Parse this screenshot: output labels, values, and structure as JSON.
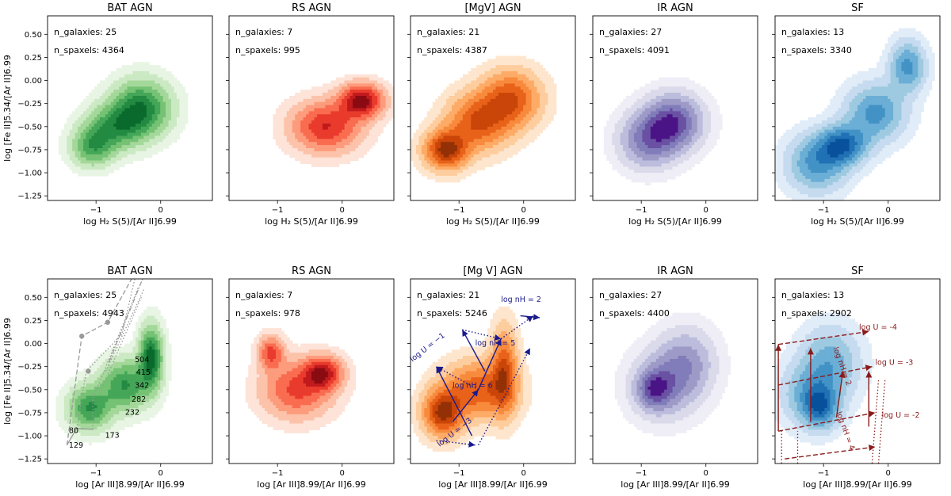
{
  "chart_data": [
    {
      "type": "kde-contour",
      "row": "top",
      "title": "BAT AGN",
      "colormap": "Greens",
      "ylabel": "log [Fe II]5.34/[Ar II]6.99",
      "xlabel": "log H₂ S(5)/[Ar II]6.99",
      "xlim": [
        -1.75,
        0.8
      ],
      "ylim": [
        -1.3,
        0.7
      ],
      "xticks": [
        "−1",
        "0"
      ],
      "yticks": [
        "0.50",
        "0.25",
        "0.00",
        "−0.25",
        "−0.50",
        "−0.75",
        "−1.00",
        "−1.25"
      ],
      "stats": [
        "n_galaxies: 25",
        "n_spaxels: 4364"
      ],
      "peaks": [
        {
          "x": -0.3,
          "y": -0.3,
          "sx": 0.3,
          "sy": 0.2
        },
        {
          "x": -1.05,
          "y": -0.72,
          "sx": 0.22,
          "sy": 0.14
        },
        {
          "x": -0.7,
          "y": -0.5,
          "sx": 0.3,
          "sy": 0.16
        }
      ],
      "annotations": []
    },
    {
      "type": "kde-contour",
      "row": "top",
      "title": "RS AGN",
      "colormap": "Reds",
      "xlabel": "log H₂ S(5)/[Ar II]6.99",
      "xlim": [
        -1.75,
        0.8
      ],
      "ylim": [
        -1.3,
        0.7
      ],
      "xticks": [
        "−1",
        "0"
      ],
      "stats": [
        "n_galaxies: 7",
        "n_spaxels: 995"
      ],
      "peaks": [
        {
          "x": 0.3,
          "y": -0.22,
          "sx": 0.22,
          "sy": 0.12
        },
        {
          "x": -0.25,
          "y": -0.5,
          "sx": 0.35,
          "sy": 0.18
        }
      ],
      "annotations": []
    },
    {
      "type": "kde-contour",
      "row": "top",
      "title": "[MgV] AGN",
      "colormap": "Oranges",
      "xlabel": "log H₂ S(5)/[Ar II]6.99",
      "xlim": [
        -1.75,
        0.8
      ],
      "ylim": [
        -1.3,
        0.7
      ],
      "xticks": [
        "−1",
        "0"
      ],
      "stats": [
        "n_galaxies: 21",
        "n_spaxels: 4387"
      ],
      "peaks": [
        {
          "x": -1.2,
          "y": -0.75,
          "sx": 0.22,
          "sy": 0.14
        },
        {
          "x": -0.7,
          "y": -0.45,
          "sx": 0.32,
          "sy": 0.2
        },
        {
          "x": -0.2,
          "y": -0.2,
          "sx": 0.3,
          "sy": 0.2
        }
      ],
      "annotations": []
    },
    {
      "type": "kde-contour",
      "row": "top",
      "title": "IR AGN",
      "colormap": "Purples",
      "xlabel": "log H₂ S(5)/[Ar II]6.99",
      "xlim": [
        -1.75,
        0.8
      ],
      "ylim": [
        -1.3,
        0.7
      ],
      "xticks": [
        "−1",
        "0"
      ],
      "stats": [
        "n_galaxies: 27",
        "n_spaxels: 4091"
      ],
      "peaks": [
        {
          "x": -0.5,
          "y": -0.45,
          "sx": 0.3,
          "sy": 0.2
        },
        {
          "x": -0.9,
          "y": -0.65,
          "sx": 0.3,
          "sy": 0.2
        }
      ],
      "annotations": []
    },
    {
      "type": "kde-contour",
      "row": "top",
      "title": "SF",
      "colormap": "Blues",
      "xlabel": "log H₂ S(5)/[Ar II]6.99",
      "xlim": [
        -1.75,
        0.8
      ],
      "ylim": [
        -1.3,
        0.7
      ],
      "xticks": [
        "−1",
        "0"
      ],
      "stats": [
        "n_galaxies: 13",
        "n_spaxels: 3340"
      ],
      "peaks": [
        {
          "x": -0.7,
          "y": -0.7,
          "sx": 0.25,
          "sy": 0.14
        },
        {
          "x": -1.1,
          "y": -0.9,
          "sx": 0.3,
          "sy": 0.2
        },
        {
          "x": -0.2,
          "y": -0.35,
          "sx": 0.3,
          "sy": 0.2
        },
        {
          "x": 0.3,
          "y": 0.15,
          "sx": 0.18,
          "sy": 0.18
        }
      ],
      "annotations": []
    },
    {
      "type": "kde-contour",
      "row": "bottom",
      "title": "BAT AGN",
      "colormap": "Greens",
      "ylabel": "log [Fe II]5.34/[Ar II]6.99",
      "xlabel": "log [Ar III]8.99/[Ar II]6.99",
      "xlim": [
        -1.75,
        0.8
      ],
      "ylim": [
        -1.3,
        0.7
      ],
      "xticks": [
        "−1",
        "0"
      ],
      "yticks": [
        "0.50",
        "0.25",
        "0.00",
        "−0.25",
        "−0.50",
        "−0.75",
        "−1.00",
        "−1.25"
      ],
      "stats": [
        "n_galaxies: 25",
        "n_spaxels: 4943"
      ],
      "peaks": [
        {
          "x": -0.15,
          "y": -0.15,
          "sx": 0.12,
          "sy": 0.22
        },
        {
          "x": -1.1,
          "y": -0.7,
          "sx": 0.22,
          "sy": 0.16
        },
        {
          "x": -0.55,
          "y": -0.45,
          "sx": 0.25,
          "sy": 0.18
        }
      ],
      "annotations": [
        {
          "style": "solid",
          "color": "#999999",
          "width": 1.3,
          "points": [
            [
              -1.45,
              -1.1
            ],
            [
              -1.3,
              -0.92
            ],
            [
              -1.05,
              -0.93
            ]
          ]
        },
        {
          "style": "dashed",
          "color": "#999999",
          "width": 1.3,
          "points": [
            [
              -1.45,
              -1.1
            ],
            [
              -1.22,
              0.08
            ],
            [
              -0.82,
              0.23
            ],
            [
              -0.45,
              0.7
            ]
          ]
        },
        {
          "style": "dotted",
          "color": "#999999",
          "width": 1.3,
          "points": [
            [
              -1.3,
              -0.92
            ],
            [
              -1.15,
              -0.3
            ],
            [
              -0.6,
              0.1
            ],
            [
              -0.4,
              0.7
            ]
          ]
        },
        {
          "style": "dotted",
          "color": "#999999",
          "width": 1.3,
          "points": [
            [
              -1.05,
              -0.93
            ],
            [
              -1.05,
              -0.6
            ],
            [
              -0.35,
              0.6
            ]
          ]
        },
        {
          "style": "dotted",
          "color": "#999999",
          "width": 1.3,
          "points": [
            [
              -0.95,
              -0.55
            ],
            [
              -0.3,
              0.5
            ]
          ]
        },
        {
          "style": "dotted",
          "color": "#999999",
          "width": 1.3,
          "points": [
            [
              -0.85,
              -0.3
            ],
            [
              -0.25,
              0.6
            ]
          ]
        },
        {
          "style": "dashdot",
          "color": "#999999",
          "width": 1.3,
          "points": [
            [
              -0.8,
              -0.2
            ],
            [
              -0.28,
              0.7
            ]
          ]
        }
      ],
      "markers": [
        [
          -1.22,
          0.08
        ],
        [
          -1.12,
          -0.3
        ],
        [
          -0.82,
          0.23
        ]
      ],
      "labels": [
        {
          "x": -1.42,
          "y": -0.97,
          "text": "80"
        },
        {
          "x": -1.42,
          "y": -1.13,
          "text": "129"
        },
        {
          "x": -0.86,
          "y": -1.02,
          "text": "173"
        },
        {
          "x": -0.55,
          "y": -0.77,
          "text": "232"
        },
        {
          "x": -0.45,
          "y": -0.63,
          "text": "282"
        },
        {
          "x": -0.4,
          "y": -0.48,
          "text": "342"
        },
        {
          "x": -0.38,
          "y": -0.34,
          "text": "415"
        },
        {
          "x": -0.4,
          "y": -0.2,
          "text": "504"
        }
      ]
    },
    {
      "type": "kde-contour",
      "row": "bottom",
      "title": "RS AGN",
      "colormap": "Reds",
      "xlabel": "log [Ar III]8.99/[Ar II]6.99",
      "xlim": [
        -1.75,
        0.8
      ],
      "ylim": [
        -1.3,
        0.7
      ],
      "xticks": [
        "−1",
        "0"
      ],
      "stats": [
        "n_galaxies: 7",
        "n_spaxels: 978"
      ],
      "peaks": [
        {
          "x": -0.3,
          "y": -0.32,
          "sx": 0.2,
          "sy": 0.12
        },
        {
          "x": -1.1,
          "y": -0.1,
          "sx": 0.13,
          "sy": 0.12
        },
        {
          "x": -0.7,
          "y": -0.5,
          "sx": 0.35,
          "sy": 0.2
        }
      ],
      "annotations": []
    },
    {
      "type": "kde-contour",
      "row": "bottom",
      "title": "[Mg V] AGN",
      "colormap": "Oranges",
      "xlabel": "log [Ar III]8.99/[Ar II]6.99",
      "xlim": [
        -1.75,
        0.8
      ],
      "ylim": [
        -1.3,
        0.7
      ],
      "xticks": [
        "−1",
        "0"
      ],
      "stats": [
        "n_galaxies: 21",
        "n_spaxels: 5246"
      ],
      "peaks": [
        {
          "x": -1.25,
          "y": -0.75,
          "sx": 0.2,
          "sy": 0.17
        },
        {
          "x": -0.3,
          "y": -0.3,
          "sx": 0.13,
          "sy": 0.3
        },
        {
          "x": -0.7,
          "y": -0.5,
          "sx": 0.35,
          "sy": 0.2
        }
      ],
      "annotations": [
        {
          "style": "solid",
          "color": "#1a1a8c",
          "width": 1.4,
          "arrow": true,
          "points": [
            [
              -0.8,
              -1.0
            ],
            [
              -1.35,
              -0.25
            ]
          ]
        },
        {
          "style": "solid",
          "color": "#1a1a8c",
          "width": 1.4,
          "arrow": true,
          "points": [
            [
              -1.1,
              -0.85
            ],
            [
              -0.7,
              -0.5
            ]
          ]
        },
        {
          "style": "solid",
          "color": "#1a1a8c",
          "width": 1.4,
          "arrow": true,
          "points": [
            [
              -0.7,
              -0.5
            ],
            [
              -0.35,
              0.05
            ]
          ]
        },
        {
          "style": "solid",
          "color": "#1a1a8c",
          "width": 1.4,
          "arrow": true,
          "points": [
            [
              -0.6,
              -0.3
            ],
            [
              -0.95,
              0.15
            ]
          ]
        },
        {
          "style": "solid",
          "color": "#1a1a8c",
          "width": 1.4,
          "arrow": true,
          "points": [
            [
              -0.05,
              0.3
            ],
            [
              0.25,
              0.28
            ]
          ]
        },
        {
          "style": "dotted",
          "color": "#1a1a8c",
          "width": 1.4,
          "arrow": true,
          "points": [
            [
              -0.7,
              -0.5
            ],
            [
              -1.35,
              -0.25
            ]
          ]
        },
        {
          "style": "dotted",
          "color": "#1a1a8c",
          "width": 1.4,
          "arrow": true,
          "points": [
            [
              -1.35,
              -1.05
            ],
            [
              -0.75,
              -1.1
            ]
          ]
        },
        {
          "style": "dotted",
          "color": "#1a1a8c",
          "width": 1.4,
          "arrow": true,
          "points": [
            [
              -0.7,
              -1.1
            ],
            [
              0.1,
              -0.05
            ]
          ]
        },
        {
          "style": "dotted",
          "color": "#1a1a8c",
          "width": 1.4,
          "arrow": true,
          "points": [
            [
              -0.95,
              0.15
            ],
            [
              -0.35,
              0.05
            ]
          ]
        },
        {
          "style": "dotted",
          "color": "#1a1a8c",
          "width": 1.4,
          "arrow": true,
          "points": [
            [
              -0.35,
              0.05
            ],
            [
              0.15,
              0.3
            ]
          ]
        }
      ],
      "markers": [],
      "labels": [
        {
          "x": -1.72,
          "y": -0.2,
          "text": "log U = −1",
          "rot": -38,
          "color": "#1a1a8c"
        },
        {
          "x": -1.3,
          "y": -1.12,
          "text": "log U = −3",
          "rot": -38,
          "color": "#1a1a8c"
        },
        {
          "x": -0.35,
          "y": 0.45,
          "text": "log nH = 2",
          "color": "#1a1a8c"
        },
        {
          "x": -0.75,
          "y": -0.02,
          "text": "log nH = 5",
          "color": "#1a1a8c"
        },
        {
          "x": -1.1,
          "y": -0.48,
          "text": "log nH = 6",
          "color": "#1a1a8c"
        }
      ]
    },
    {
      "type": "kde-contour",
      "row": "bottom",
      "title": "IR AGN",
      "colormap": "Purples",
      "xlabel": "log [Ar III]8.99/[Ar II]6.99",
      "xlim": [
        -1.75,
        0.8
      ],
      "ylim": [
        -1.3,
        0.7
      ],
      "xticks": [
        "−1",
        "0"
      ],
      "stats": [
        "n_galaxies: 27",
        "n_spaxels: 4400"
      ],
      "peaks": [
        {
          "x": -0.8,
          "y": -0.5,
          "sx": 0.18,
          "sy": 0.14
        },
        {
          "x": -0.65,
          "y": -0.45,
          "sx": 0.35,
          "sy": 0.25
        },
        {
          "x": -0.3,
          "y": -0.2,
          "sx": 0.3,
          "sy": 0.25
        }
      ],
      "annotations": []
    },
    {
      "type": "kde-contour",
      "row": "bottom",
      "title": "SF",
      "colormap": "Blues",
      "xlabel": "log [Ar III]8.99/[Ar II]6.99",
      "xlim": [
        -1.75,
        0.8
      ],
      "ylim": [
        -1.3,
        0.7
      ],
      "xticks": [
        "−1",
        "0"
      ],
      "stats": [
        "n_galaxies: 13",
        "n_spaxels: 2902"
      ],
      "peaks": [
        {
          "x": -1.05,
          "y": -0.7,
          "sx": 0.18,
          "sy": 0.15
        },
        {
          "x": -1.2,
          "y": -0.55,
          "sx": 0.3,
          "sy": 0.22
        },
        {
          "x": -0.9,
          "y": -0.2,
          "sx": 0.3,
          "sy": 0.25
        }
      ],
      "annotations": [
        {
          "style": "dashed",
          "color": "#8b1a1a",
          "width": 1.4,
          "arrow": true,
          "points": [
            [
              -1.7,
              -0.01
            ],
            [
              -0.3,
              0.13
            ]
          ]
        },
        {
          "style": "dashed",
          "color": "#8b1a1a",
          "width": 1.4,
          "arrow": true,
          "points": [
            [
              -1.7,
              -0.45
            ],
            [
              -0.25,
              -0.25
            ]
          ]
        },
        {
          "style": "dashed",
          "color": "#8b1a1a",
          "width": 1.4,
          "arrow": true,
          "points": [
            [
              -1.7,
              -0.95
            ],
            [
              -0.2,
              -0.75
            ]
          ]
        },
        {
          "style": "dashed",
          "color": "#8b1a1a",
          "width": 1.4,
          "arrow": true,
          "points": [
            [
              -1.6,
              -1.25
            ],
            [
              -0.2,
              -1.12
            ]
          ]
        },
        {
          "style": "solid",
          "color": "#8b1a1a",
          "width": 1.4,
          "arrow": true,
          "points": [
            [
              -1.7,
              -0.95
            ],
            [
              -1.7,
              -0.01
            ]
          ]
        },
        {
          "style": "solid",
          "color": "#8b1a1a",
          "width": 1.4,
          "arrow": true,
          "points": [
            [
              -1.2,
              -0.85
            ],
            [
              -1.2,
              -0.05
            ]
          ]
        },
        {
          "style": "solid",
          "color": "#8b1a1a",
          "width": 1.4,
          "arrow": true,
          "points": [
            [
              -0.8,
              -0.8
            ],
            [
              -0.7,
              -0.3
            ]
          ]
        },
        {
          "style": "solid",
          "color": "#8b1a1a",
          "width": 1.4,
          "arrow": true,
          "points": [
            [
              -0.3,
              -0.9
            ],
            [
              -0.3,
              -0.3
            ]
          ]
        },
        {
          "style": "dotted",
          "color": "#8b1a1a",
          "width": 1.3,
          "arrow": false,
          "points": [
            [
              -1.65,
              -1.3
            ],
            [
              -1.65,
              -0.95
            ]
          ]
        },
        {
          "style": "dotted",
          "color": "#8b1a1a",
          "width": 1.3,
          "arrow": false,
          "points": [
            [
              -1.4,
              -1.3
            ],
            [
              -1.4,
              -0.95
            ]
          ]
        },
        {
          "style": "dotted",
          "color": "#8b1a1a",
          "width": 1.3,
          "arrow": false,
          "points": [
            [
              -0.25,
              -1.3
            ],
            [
              -0.15,
              -0.4
            ]
          ]
        },
        {
          "style": "dotted",
          "color": "#8b1a1a",
          "width": 1.3,
          "arrow": false,
          "points": [
            [
              -0.15,
              -1.3
            ],
            [
              -0.05,
              -0.4
            ]
          ]
        }
      ],
      "markers": [],
      "labels": [
        {
          "x": -0.45,
          "y": 0.15,
          "text": "log U = -4",
          "color": "#8b1a1a"
        },
        {
          "x": -0.2,
          "y": -0.23,
          "text": "log U = -3",
          "color": "#8b1a1a"
        },
        {
          "x": -0.1,
          "y": -0.8,
          "text": "log U = -2",
          "color": "#8b1a1a"
        },
        {
          "x": -0.85,
          "y": -0.05,
          "text": "log nH = 2",
          "rot": 70,
          "color": "#8b1a1a"
        },
        {
          "x": -0.8,
          "y": -0.75,
          "text": "log nH = 4",
          "rot": 70,
          "color": "#8b1a1a"
        }
      ]
    }
  ]
}
